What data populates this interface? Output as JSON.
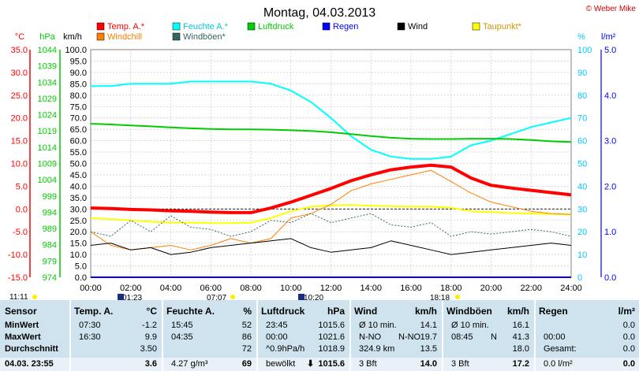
{
  "title": "Montag, 04.03.2013",
  "credit": "© Weber Mike",
  "axes": {
    "temp_unit": "°C",
    "temp_color": "#ff0000",
    "hpa_unit": "hPa",
    "hpa_color": "#00cc00",
    "kmh_unit": "km/h",
    "pct_unit": "%",
    "pct_color": "#00c8ff",
    "rain_unit": "l/m²",
    "rain_color": "#0000ff",
    "temp_ticks": [
      "35.0",
      "30.0",
      "25.0",
      "20.0",
      "15.0",
      "10.0",
      "5.0",
      "0.0",
      "-5.0",
      "-10.0",
      "-15.0"
    ],
    "hpa_ticks": [
      "1044",
      "1039",
      "1034",
      "1029",
      "1024",
      "1019",
      "1014",
      "1009",
      "1004",
      "999",
      "994",
      "989",
      "984",
      "979",
      "974"
    ],
    "kmh_ticks": [
      "100.0",
      "95.0",
      "90.0",
      "85.0",
      "80.0",
      "75.0",
      "70.0",
      "65.0",
      "60.0",
      "55.0",
      "50.0",
      "45.0",
      "40.0",
      "35.0",
      "30.0",
      "25.0",
      "20.0",
      "15.0",
      "10.0",
      "5.0",
      "0.0"
    ],
    "pct_ticks": [
      "100",
      "90",
      "80",
      "70",
      "60",
      "50",
      "40",
      "30",
      "20",
      "10",
      "0"
    ],
    "rain_ticks": [
      "5.0",
      "4.0",
      "3.0",
      "2.0",
      "1.0",
      "0.0"
    ],
    "x_ticks": [
      "00:00",
      "02:00",
      "04:00",
      "06:00",
      "08:00",
      "10:00",
      "12:00",
      "14:00",
      "16:00",
      "18:00",
      "20:00",
      "22:00",
      "24:00"
    ]
  },
  "sun_markers": {
    "sunrise_left": "11:11",
    "left_time": "01:23",
    "sunrise": "07:07",
    "moon": "10:20",
    "sunset": "18:18"
  },
  "legend": [
    {
      "label": "Temp. A.*",
      "color": "#ff0000"
    },
    {
      "label": "Feuchte A.*",
      "color": "#00ffff"
    },
    {
      "label": "Luftdruck",
      "color": "#00cc00"
    },
    {
      "label": "Regen",
      "color": "#0000ff"
    },
    {
      "label": "Wind",
      "color": "#000000"
    },
    {
      "label": "Taupunkt*",
      "color": "#ffff00"
    },
    {
      "label": "Windchill",
      "color": "#ff8000"
    },
    {
      "label": "Windböen*",
      "color": "#336666"
    }
  ],
  "chart_data": {
    "type": "line",
    "title": "Montag, 04.03.2013",
    "x_hours": [
      0,
      1,
      2,
      3,
      4,
      5,
      6,
      7,
      8,
      9,
      10,
      11,
      12,
      13,
      14,
      15,
      16,
      17,
      18,
      19,
      20,
      21,
      22,
      23,
      24
    ],
    "series": [
      {
        "name": "Temp. A.*",
        "axis": "temp_c",
        "values": [
          0.2,
          0.1,
          -0.1,
          -0.2,
          -0.4,
          -0.5,
          -0.7,
          -0.8,
          -0.8,
          0.2,
          1.5,
          3.0,
          4.5,
          6.2,
          7.5,
          8.6,
          9.2,
          9.6,
          9.2,
          6.8,
          5.2,
          4.6,
          4.1,
          3.6,
          3.1
        ]
      },
      {
        "name": "Feuchte A.*",
        "axis": "pct",
        "values": [
          84,
          84,
          85,
          85,
          85,
          86,
          86,
          86,
          86,
          85,
          82,
          77,
          70,
          62,
          56,
          53,
          52,
          52,
          53,
          58,
          60,
          63,
          66,
          68,
          70
        ]
      },
      {
        "name": "Luftdruck",
        "axis": "hpa",
        "values": [
          1021.2,
          1021.0,
          1020.7,
          1020.4,
          1020.1,
          1019.8,
          1019.6,
          1019.5,
          1019.5,
          1019.4,
          1019.2,
          1019.0,
          1018.6,
          1018.0,
          1017.4,
          1016.9,
          1016.6,
          1016.5,
          1016.5,
          1016.6,
          1016.6,
          1016.5,
          1016.2,
          1015.8,
          1015.6
        ]
      },
      {
        "name": "Taupunkt*",
        "axis": "temp_c",
        "values": [
          -2.0,
          -2.2,
          -2.5,
          -2.8,
          -3.0,
          -3.0,
          -3.1,
          -3.1,
          -3.0,
          -2.0,
          -0.5,
          0.5,
          0.8,
          0.9,
          0.7,
          0.6,
          0.5,
          0.5,
          0.3,
          -0.5,
          -0.7,
          -0.9,
          -1.0,
          -1.1,
          -1.2
        ]
      },
      {
        "name": "Windchill",
        "axis": "temp_c",
        "values": [
          -5.0,
          -8.0,
          -9.0,
          -8.5,
          -8.0,
          -9.0,
          -8.0,
          -6.5,
          -7.5,
          -6.5,
          -2.0,
          -1.0,
          1.0,
          4.0,
          5.5,
          6.5,
          7.5,
          8.5,
          6.0,
          3.5,
          1.5,
          0.5,
          -0.5,
          -1.0,
          -1.2
        ]
      },
      {
        "name": "Wind",
        "axis": "kmh",
        "values": [
          14,
          15,
          12,
          13,
          10,
          11,
          13,
          14,
          15,
          16,
          17,
          13,
          11,
          12,
          13,
          16,
          14,
          12,
          10,
          11,
          12,
          13,
          14,
          15,
          14
        ]
      },
      {
        "name": "Windböen*",
        "axis": "kmh",
        "values": [
          20,
          18,
          25,
          20,
          27,
          22,
          21,
          18,
          20,
          25,
          24,
          28,
          24,
          26,
          28,
          23,
          22,
          24,
          18,
          20,
          19,
          20,
          21,
          20,
          18
        ]
      },
      {
        "name": "Regen",
        "axis": "rain",
        "values": [
          0,
          0,
          0,
          0,
          0,
          0,
          0,
          0,
          0,
          0,
          0,
          0,
          0,
          0,
          0,
          0,
          0,
          0,
          0,
          0,
          0,
          0,
          0,
          0,
          0
        ]
      }
    ],
    "ylim_temp": [
      -15,
      35
    ],
    "ylim_hpa": [
      974,
      1044
    ],
    "ylim_kmh": [
      0,
      100
    ],
    "ylim_pct": [
      0,
      100
    ],
    "ylim_rain": [
      0,
      5
    ],
    "grid": true
  },
  "table": {
    "sensor_header": "Sensor",
    "rows": [
      "MinWert",
      "MaxWert",
      "Durchschnitt"
    ],
    "last_label": "04.03. 23:55",
    "temp": {
      "header": "Temp. A.",
      "unit": "°C",
      "min_time": "07:30",
      "min": "-1.2",
      "max_time": "16:30",
      "max": "9.9",
      "avg": "3.50",
      "last": "3.6"
    },
    "hum": {
      "header": "Feuchte A.",
      "unit": "%",
      "min_time": "15:45",
      "min": "52",
      "max_time": "04:35",
      "max": "86",
      "avg": "72",
      "extra": "4.27 g/m³",
      "last": "69"
    },
    "press": {
      "header": "Luftdruck",
      "unit": "hPa",
      "min_time": "23:45",
      "min": "1015.6",
      "max_time": "00:00",
      "max": "1021.6",
      "trend": "^0.9hPa/h",
      "avg": "1018.9",
      "extra": "bewölkt",
      "last": "1015.6",
      "last_arrow": "⬇"
    },
    "wind": {
      "header": "Wind",
      "unit": "km/h",
      "r1l": "Ø 10 min.",
      "r1": "14.1",
      "r2l": "N-NO",
      "r2": "19.7",
      "r3l": "324.9 km",
      "r3": "13.5",
      "extra": "3 Bft",
      "last": "14.0"
    },
    "gust": {
      "header": "Windböen",
      "unit": "km/h",
      "r1l": "Ø 10 min.",
      "r1": "16.1",
      "r2t": "08:45",
      "r2l": "N",
      "r2": "41.3",
      "r3": "18.0",
      "extra": "3 Bft",
      "last": "17.2"
    },
    "rain": {
      "header": "Regen",
      "unit": "l/m²",
      "r1": "0.0",
      "r2t": "00:00",
      "r2": "0.0",
      "r3l": "Gesamt:",
      "r3": "0.0",
      "extra": "0.0 l/m²",
      "last": "0.0"
    }
  }
}
